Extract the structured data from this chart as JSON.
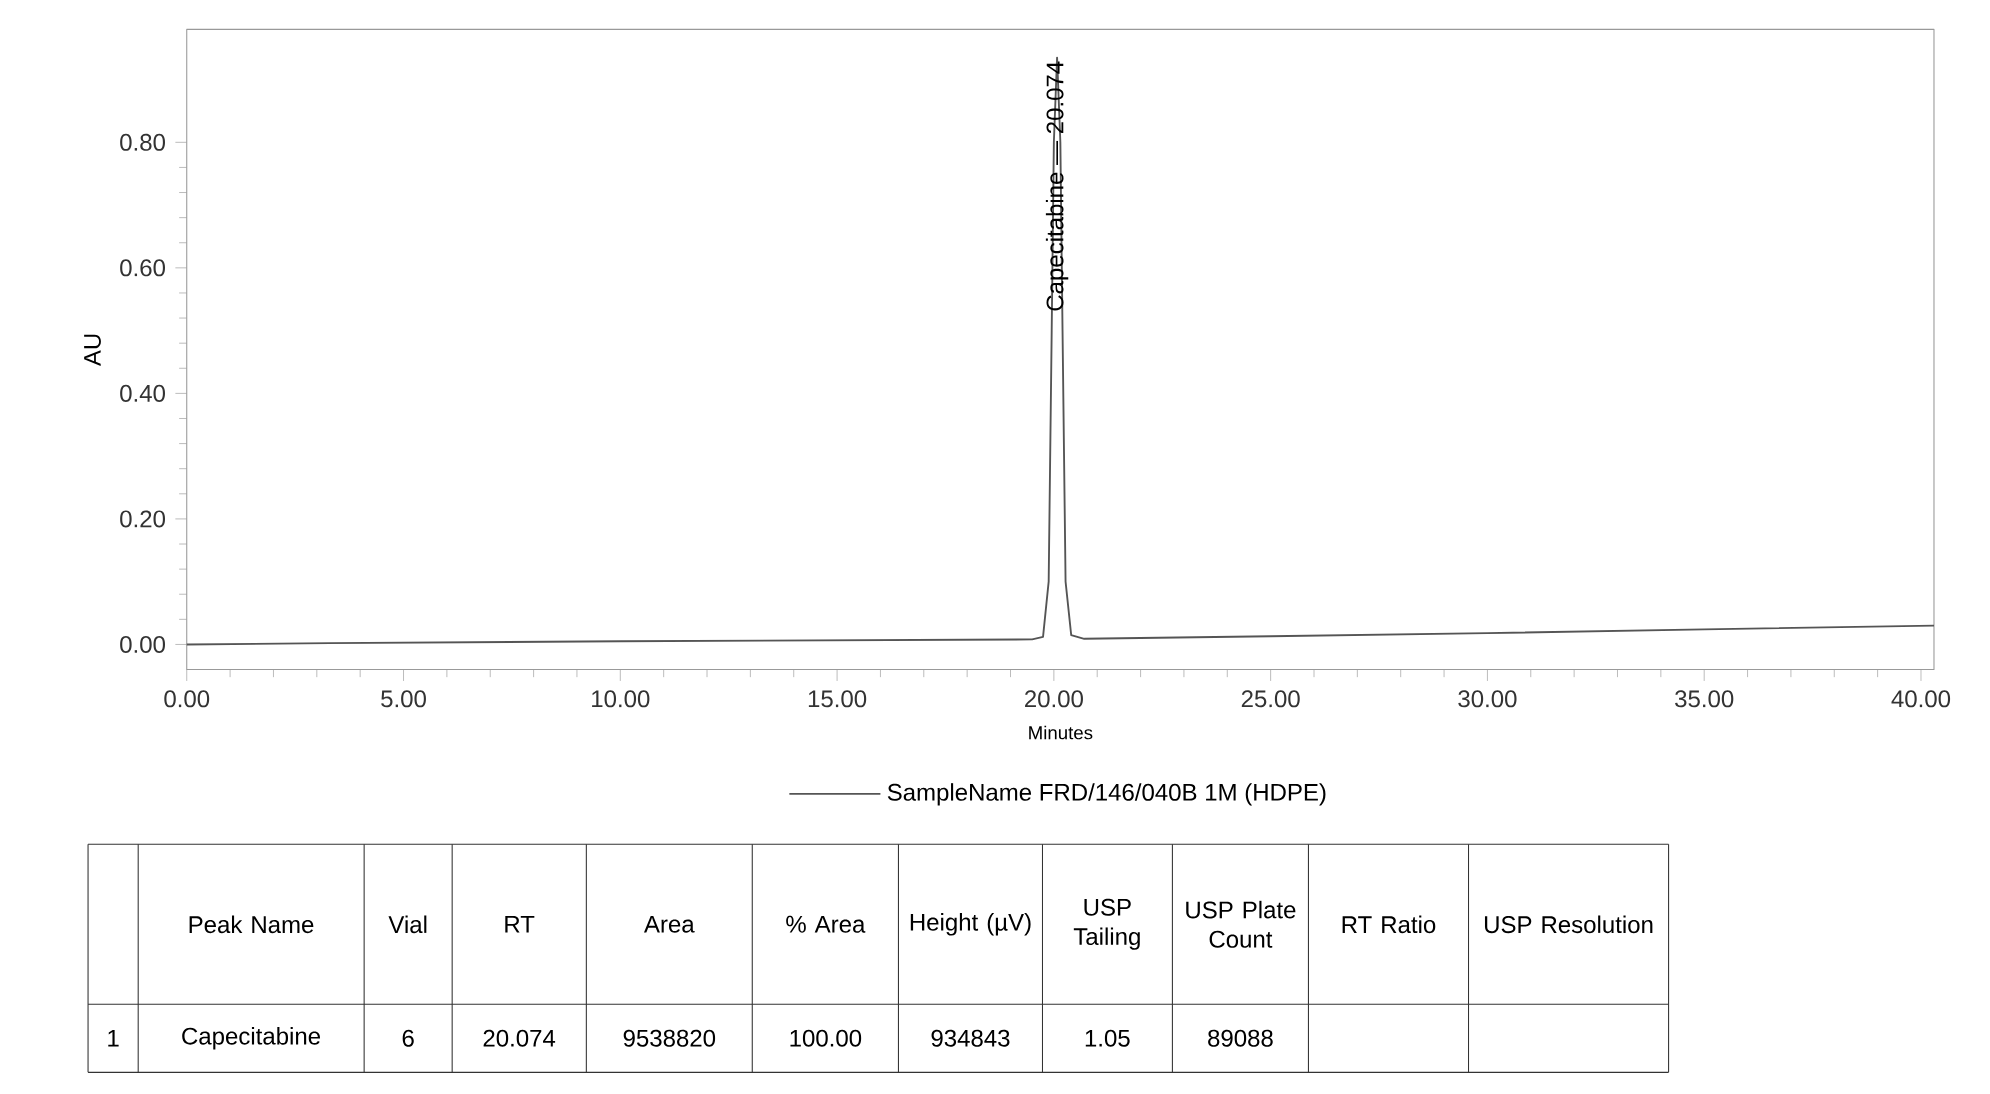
{
  "chart_data": {
    "type": "line",
    "xlabel": "Minutes",
    "ylabel": "AU",
    "xlim": [
      0,
      40.3
    ],
    "ylim": [
      -0.04,
      0.98
    ],
    "xticks": [
      {
        "value": 0,
        "label": "0.00"
      },
      {
        "value": 5,
        "label": "5.00"
      },
      {
        "value": 10,
        "label": "10.00"
      },
      {
        "value": 15,
        "label": "15.00"
      },
      {
        "value": 20,
        "label": "20.00"
      },
      {
        "value": 25,
        "label": "25.00"
      },
      {
        "value": 30,
        "label": "30.00"
      },
      {
        "value": 35,
        "label": "35.00"
      },
      {
        "value": 40,
        "label": "40.00"
      }
    ],
    "yticks": [
      {
        "value": 0,
        "label": "0.00"
      },
      {
        "value": 0.2,
        "label": "0.20"
      },
      {
        "value": 0.4,
        "label": "0.40"
      },
      {
        "value": 0.6,
        "label": "0.60"
      },
      {
        "value": 0.8,
        "label": "0.80"
      }
    ],
    "legend": "bottom",
    "grid": false,
    "marker": "none",
    "line_style": "solid",
    "series": [
      {
        "name": "SampleName FRD/146/040B 1M (HDPE)",
        "color": "#555555",
        "x": [
          0,
          3.3,
          10,
          19.5,
          19.75,
          19.88,
          19.95,
          20.0,
          20.074,
          20.15,
          20.2,
          20.27,
          20.4,
          20.7,
          25,
          30,
          35,
          40.3
        ],
        "values": [
          0.0,
          0.002,
          0.005,
          0.008,
          0.012,
          0.1,
          0.5,
          0.8,
          0.935,
          0.8,
          0.5,
          0.1,
          0.015,
          0.009,
          0.013,
          0.018,
          0.024,
          0.03
        ]
      }
    ],
    "annotations": [
      {
        "text": "Capecitabine — 20.074",
        "x": 20.074,
        "y": 0.935
      },
      "Peak Name",
      "Vial",
      "RT",
      "Area",
      "% Area",
      "Height (µV)",
      "USP Tailing",
      "USP Plate Count",
      "RT Ratio",
      "USP Resolution",
      "1",
      "Capecitabine",
      "6",
      "20.074",
      "9538820",
      "100.00",
      "934843",
      "1.05",
      "89088"
    ]
  }
}
